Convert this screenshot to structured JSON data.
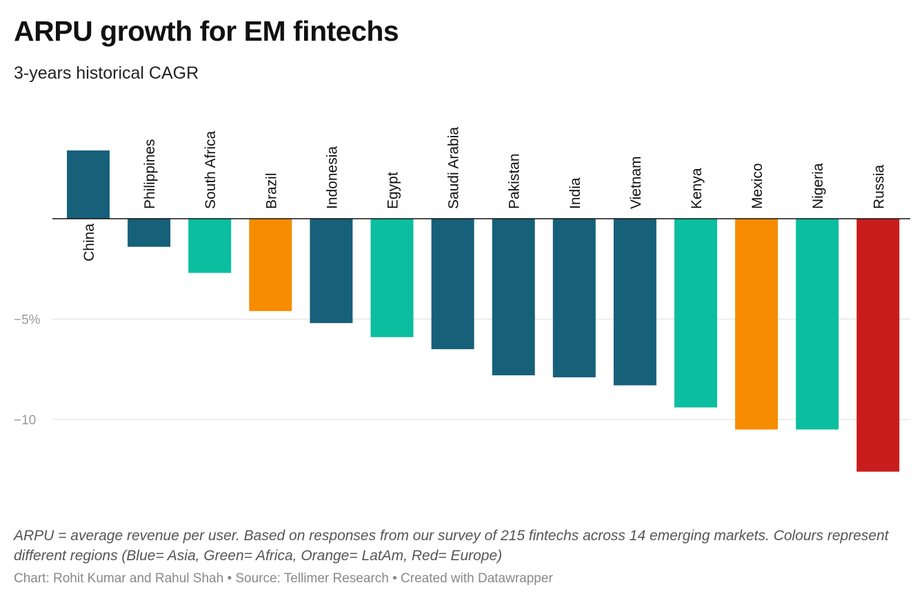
{
  "header": {
    "title": "ARPU growth for EM fintechs",
    "subtitle": "3-years historical CAGR"
  },
  "chart_data": {
    "type": "bar",
    "orientation": "vertical",
    "categories": [
      "China",
      "Philippines",
      "South Africa",
      "Brazil",
      "Indonesia",
      "Egypt",
      "Saudi Arabia",
      "Pakistan",
      "India",
      "Vietnam",
      "Kenya",
      "Mexico",
      "Nigeria",
      "Russia"
    ],
    "values": [
      3.4,
      -1.4,
      -2.7,
      -4.6,
      -5.2,
      -5.9,
      -6.5,
      -7.8,
      -7.9,
      -8.3,
      -9.4,
      -10.5,
      -10.5,
      -12.6
    ],
    "regions": [
      "Asia",
      "Asia",
      "Africa",
      "LatAm",
      "Asia",
      "Africa",
      "Asia",
      "Asia",
      "Asia",
      "Asia",
      "Africa",
      "LatAm",
      "Africa",
      "Europe"
    ],
    "region_colors": {
      "Asia": "#17607a",
      "Africa": "#0bbea0",
      "LatAm": "#f78c00",
      "Europe": "#c91c1c"
    },
    "yticks": [
      {
        "value": -5,
        "label": "−5%"
      },
      {
        "value": -10,
        "label": "−10"
      }
    ],
    "ylim": [
      -12.6,
      3.4
    ],
    "grid": true,
    "legend": "none"
  },
  "notes": "ARPU = average revenue per user. Based on responses from our survey of 215 fintechs across 14 emerging markets. Colours represent different regions (Blue= Asia, Green= Africa, Orange= LatAm, Red= Europe)",
  "footer": "Chart: Rohit Kumar and Rahul Shah • Source: Tellimer Research • Created with Datawrapper"
}
